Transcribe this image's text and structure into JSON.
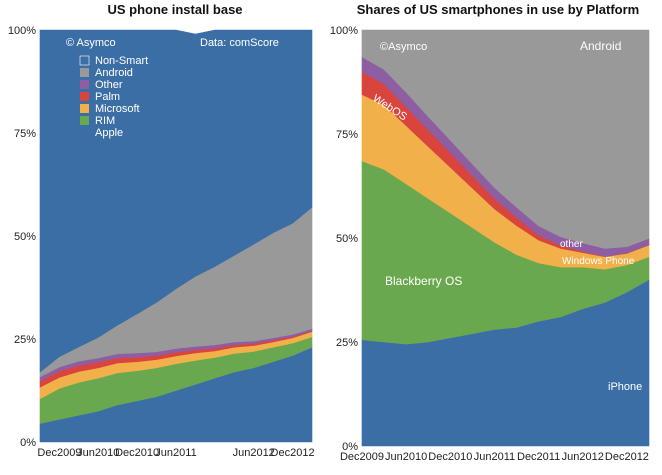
{
  "chart_data": [
    {
      "type": "area",
      "title": "US phone install base",
      "xlabel": "",
      "ylabel": "",
      "ylim": [
        0,
        100
      ],
      "y_ticks": [
        "0%",
        "25%",
        "50%",
        "75%",
        "100%"
      ],
      "x_ticks": [
        "Dec2009",
        "Jun2010",
        "Dec2010",
        "Jun2011",
        "Jun2012",
        "Dec2012"
      ],
      "x_tick_months": [
        0,
        6,
        12,
        18,
        30,
        36
      ],
      "x": [
        -3,
        0,
        3,
        6,
        9,
        12,
        15,
        18,
        21,
        24,
        27,
        30,
        33,
        36,
        39
      ],
      "annotations": [
        "© Asymco",
        "Data: comScore"
      ],
      "legend": [
        "Non-Smart",
        "Android",
        "Other",
        "Palm",
        "Microsoft",
        "RIM",
        "Apple"
      ],
      "legend_position": "top-left",
      "stacked": true,
      "series": [
        {
          "name": "Apple",
          "color": "#3c6ea6",
          "values": [
            4.5,
            5.5,
            6.5,
            7.5,
            9,
            10,
            11,
            12.5,
            14,
            15.5,
            17,
            18,
            19.5,
            21,
            23
          ]
        },
        {
          "name": "RIM",
          "color": "#6aa84f",
          "values": [
            6,
            7.5,
            8,
            8,
            7.8,
            7.3,
            7,
            6.5,
            5.8,
            5,
            4.5,
            4,
            3.5,
            3,
            2.5
          ]
        },
        {
          "name": "Microsoft",
          "color": "#f2b04a",
          "values": [
            2.8,
            2.7,
            2.6,
            2.5,
            2.4,
            2.2,
            2,
            1.9,
            1.8,
            1.6,
            1.5,
            1.4,
            1.3,
            1.3,
            1.3
          ]
        },
        {
          "name": "Palm",
          "color": "#d9443c",
          "values": [
            1.5,
            1.5,
            1.5,
            1.4,
            1.2,
            1.1,
            1,
            0.9,
            0.8,
            0.7,
            0.6,
            0.5,
            0.4,
            0.3,
            0.2
          ]
        },
        {
          "name": "Other",
          "color": "#8e5ea2",
          "values": [
            1,
            1,
            1,
            1,
            1,
            1,
            0.9,
            0.9,
            0.8,
            0.8,
            0.7,
            0.6,
            0.6,
            0.5,
            0.5
          ]
        },
        {
          "name": "Android",
          "color": "#999999",
          "values": [
            1.2,
            2.5,
            3.5,
            5,
            7,
            9.5,
            12,
            14.5,
            17,
            19,
            21,
            23.5,
            25.5,
            27,
            29.5
          ]
        },
        {
          "name": "Non-Smart",
          "color": "#3c6ea6",
          "values": [
            83,
            79.3,
            76.9,
            74.6,
            71.6,
            68.9,
            66.1,
            62.8,
            58.8,
            57.4,
            54.7,
            52,
            49.2,
            46.9,
            43
          ]
        }
      ]
    },
    {
      "type": "area",
      "title": "Shares of US smartphones in use by Platform",
      "xlabel": "",
      "ylabel": "",
      "ylim": [
        0,
        100
      ],
      "y_ticks": [
        "0%",
        "25%",
        "50%",
        "75%",
        "100%"
      ],
      "x_ticks": [
        "Dec2009",
        "Jun2010",
        "Dec2010",
        "Jun2011",
        "Dec2011",
        "Jun2012",
        "Dec2012"
      ],
      "x_tick_months": [
        0,
        6,
        12,
        18,
        24,
        30,
        36
      ],
      "x": [
        0,
        3,
        6,
        9,
        12,
        15,
        18,
        21,
        24,
        27,
        30,
        33,
        36,
        39
      ],
      "annotations": [
        "©Asymco"
      ],
      "series_labels": [
        "Android",
        "WebOS",
        "other",
        "Windows Phone",
        "Blackberry OS",
        "iPhone"
      ],
      "stacked": true,
      "series": [
        {
          "name": "iPhone",
          "color": "#3c6ea6",
          "values": [
            25.5,
            25,
            24.5,
            25,
            26,
            27,
            28,
            28.5,
            30,
            31,
            33,
            34.5,
            37,
            40
          ]
        },
        {
          "name": "Blackberry OS",
          "color": "#6aa84f",
          "values": [
            43,
            41.5,
            38.5,
            34.5,
            30,
            25.5,
            21,
            17.5,
            14,
            12,
            10,
            8,
            6.5,
            5.5
          ]
        },
        {
          "name": "Windows Phone",
          "color": "#f2b04a",
          "values": [
            16,
            15.5,
            14,
            12.5,
            11,
            9.5,
            8,
            7,
            5.5,
            4.5,
            3.5,
            3,
            2.8,
            2.8
          ]
        },
        {
          "name": "WebOS",
          "color": "#d9443c",
          "values": [
            5.5,
            5,
            4.5,
            4,
            3.5,
            3,
            2.5,
            2,
            1.2,
            0.7,
            0.3,
            0.1,
            0.1,
            0.1
          ]
        },
        {
          "name": "other",
          "color": "#8e5ea2",
          "values": [
            3.5,
            3.5,
            3.5,
            3.2,
            3,
            2.8,
            2.6,
            2.4,
            2.2,
            2.1,
            2,
            1.9,
            1.5,
            1.5
          ]
        },
        {
          "name": "Android",
          "color": "#999999",
          "values": [
            6.5,
            9.5,
            15,
            20.8,
            26.5,
            32.2,
            37.9,
            42.6,
            47.1,
            49.7,
            51.2,
            52.5,
            52.1,
            50.1
          ]
        }
      ]
    }
  ]
}
